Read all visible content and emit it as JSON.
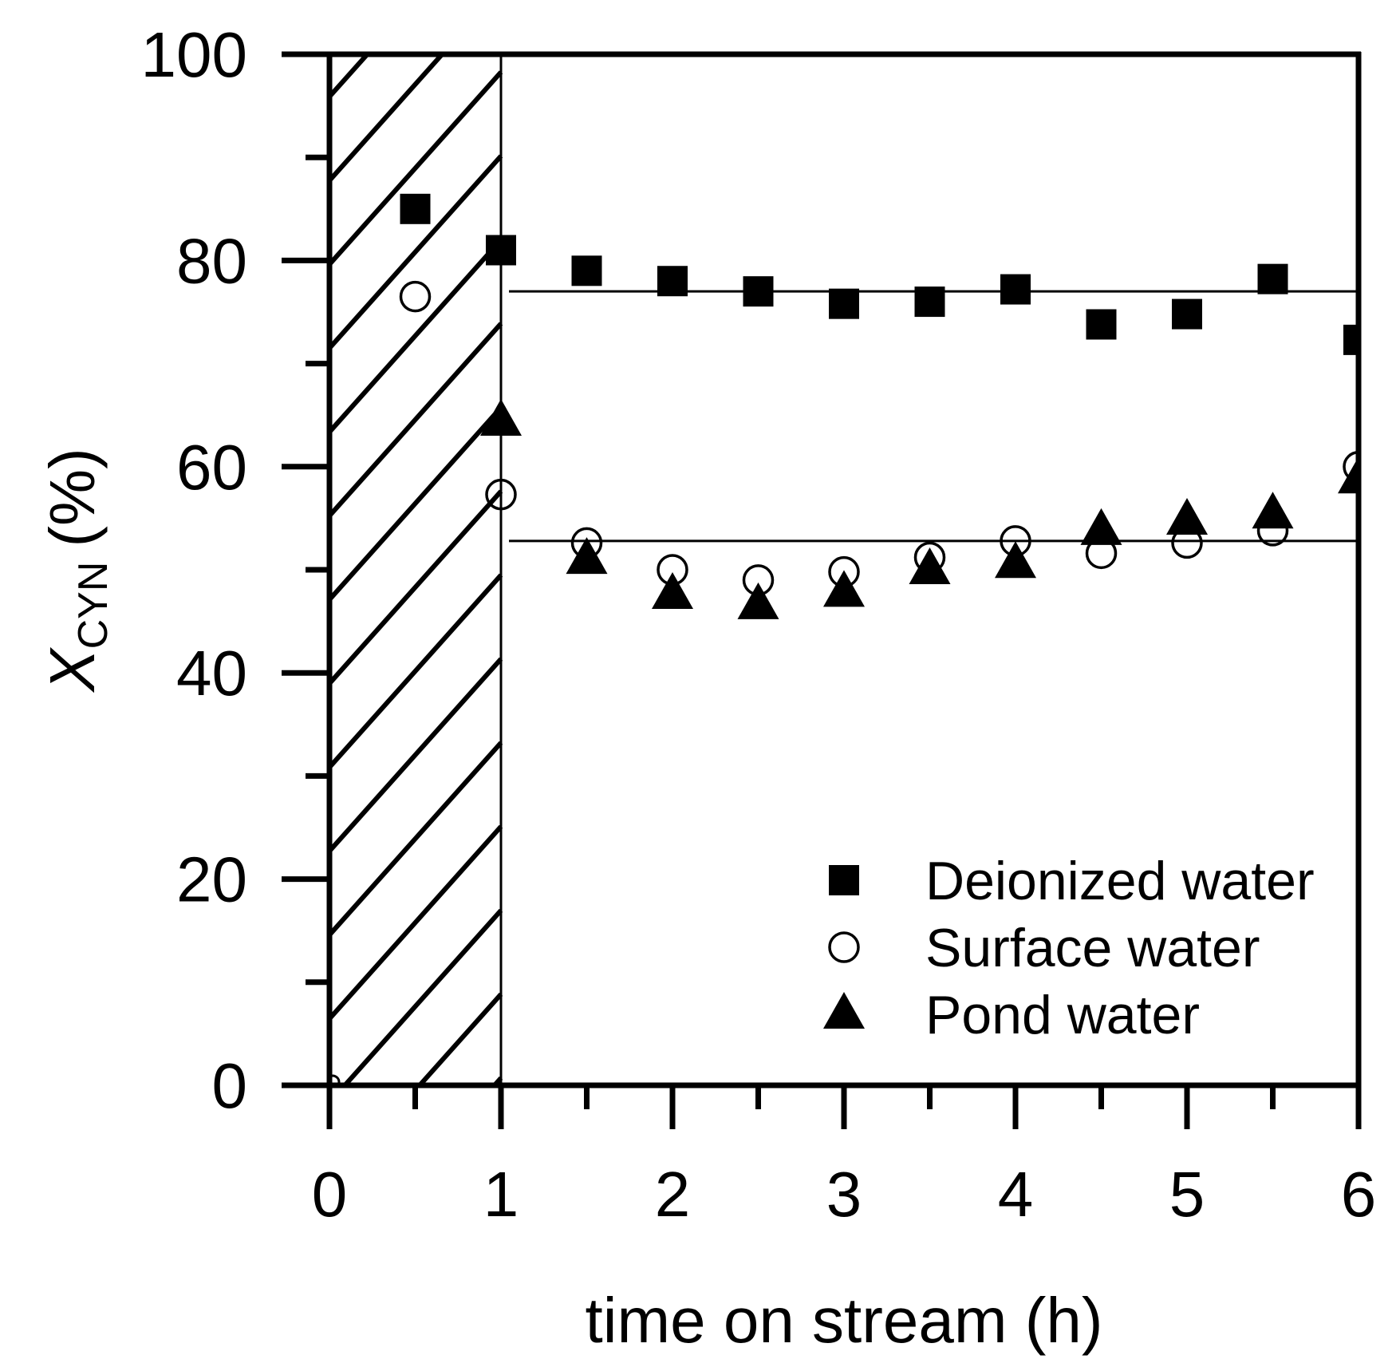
{
  "chart_data": {
    "type": "scatter",
    "title": "",
    "xlabel": "time on stream (h)",
    "ylabel_main": "X",
    "ylabel_sub": "CYN",
    "ylabel_unit": "(%)",
    "xlim": [
      0,
      6
    ],
    "ylim": [
      0,
      100
    ],
    "x_ticks": [
      "0",
      "1",
      "2",
      "3",
      "4",
      "5",
      "6"
    ],
    "y_ticks": [
      "0",
      "20",
      "40",
      "60",
      "80",
      "100"
    ],
    "grid": false,
    "legend_position": "bottom-right",
    "shaded_region": {
      "x_start": 0,
      "x_end": 1,
      "pattern": "diagonal-hatch"
    },
    "reference_lines": [
      {
        "y": 77,
        "x_start": 1,
        "x_end": 6
      },
      {
        "y": 52.8,
        "x_start": 1,
        "x_end": 6
      }
    ],
    "x": [
      0.5,
      1,
      1.5,
      2,
      2.5,
      3,
      3.5,
      4,
      4.5,
      5,
      5.5,
      6
    ],
    "series": [
      {
        "name": "Deionized water",
        "marker": "square",
        "values": [
          85,
          81,
          79,
          78,
          77,
          75.8,
          76,
          77.2,
          73.8,
          74.8,
          78.2,
          72.3
        ]
      },
      {
        "name": "Surface water",
        "marker": "circle-open",
        "values": [
          76.5,
          57.3,
          52.6,
          50,
          49,
          49.8,
          51.2,
          52.8,
          51.6,
          52.6,
          53.8,
          60
        ]
      },
      {
        "name": "Pond water",
        "marker": "triangle",
        "values": [
          null,
          64.4,
          51,
          47.6,
          46.6,
          47.8,
          50,
          50.6,
          53.8,
          54.8,
          55.4,
          58.8
        ]
      }
    ]
  }
}
